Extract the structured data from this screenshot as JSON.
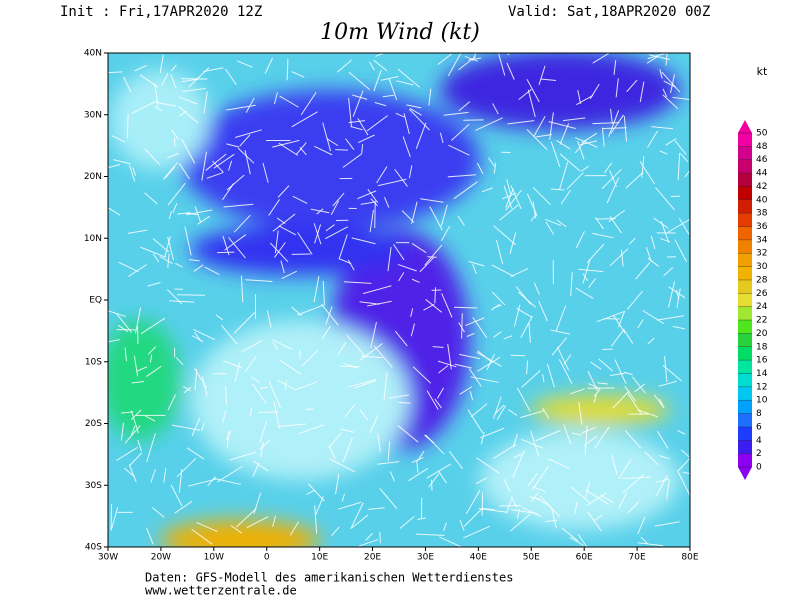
{
  "header": {
    "init": "Init : Fri,17APR2020 12Z",
    "valid": "Valid: Sat,18APR2020 00Z",
    "title": "10m Wind (kt)"
  },
  "map": {
    "lat_labels": [
      "40N",
      "30N",
      "20N",
      "10N",
      "EQ",
      "10S",
      "20S",
      "30S",
      "40S"
    ],
    "lon_labels": [
      "30W",
      "20W",
      "10W",
      "0",
      "10E",
      "20E",
      "30E",
      "40E",
      "50E",
      "60E",
      "70E",
      "80E"
    ]
  },
  "colorbar": {
    "unit": "kt",
    "levels": [
      0,
      2,
      4,
      6,
      8,
      10,
      12,
      14,
      16,
      18,
      20,
      22,
      24,
      26,
      28,
      30,
      32,
      34,
      36,
      38,
      40,
      42,
      44,
      46,
      48,
      50
    ],
    "colors": [
      "#8c00f0",
      "#3c1cf0",
      "#1e3cff",
      "#1e6eff",
      "#00a0ff",
      "#00c8f0",
      "#00dcd2",
      "#00e6a0",
      "#00dc64",
      "#28d23c",
      "#50e61e",
      "#a0e632",
      "#e6dc32",
      "#e6c81e",
      "#f0b400",
      "#f0a000",
      "#f08200",
      "#f06400",
      "#e63c00",
      "#d21e00",
      "#c00000",
      "#b4003c",
      "#c8006e",
      "#d2008c",
      "#f000a0"
    ]
  },
  "footer": {
    "source": "Daten: GFS-Modell des amerikanischen Wetterdienstes",
    "url": "www.wetterzentrale.de"
  }
}
